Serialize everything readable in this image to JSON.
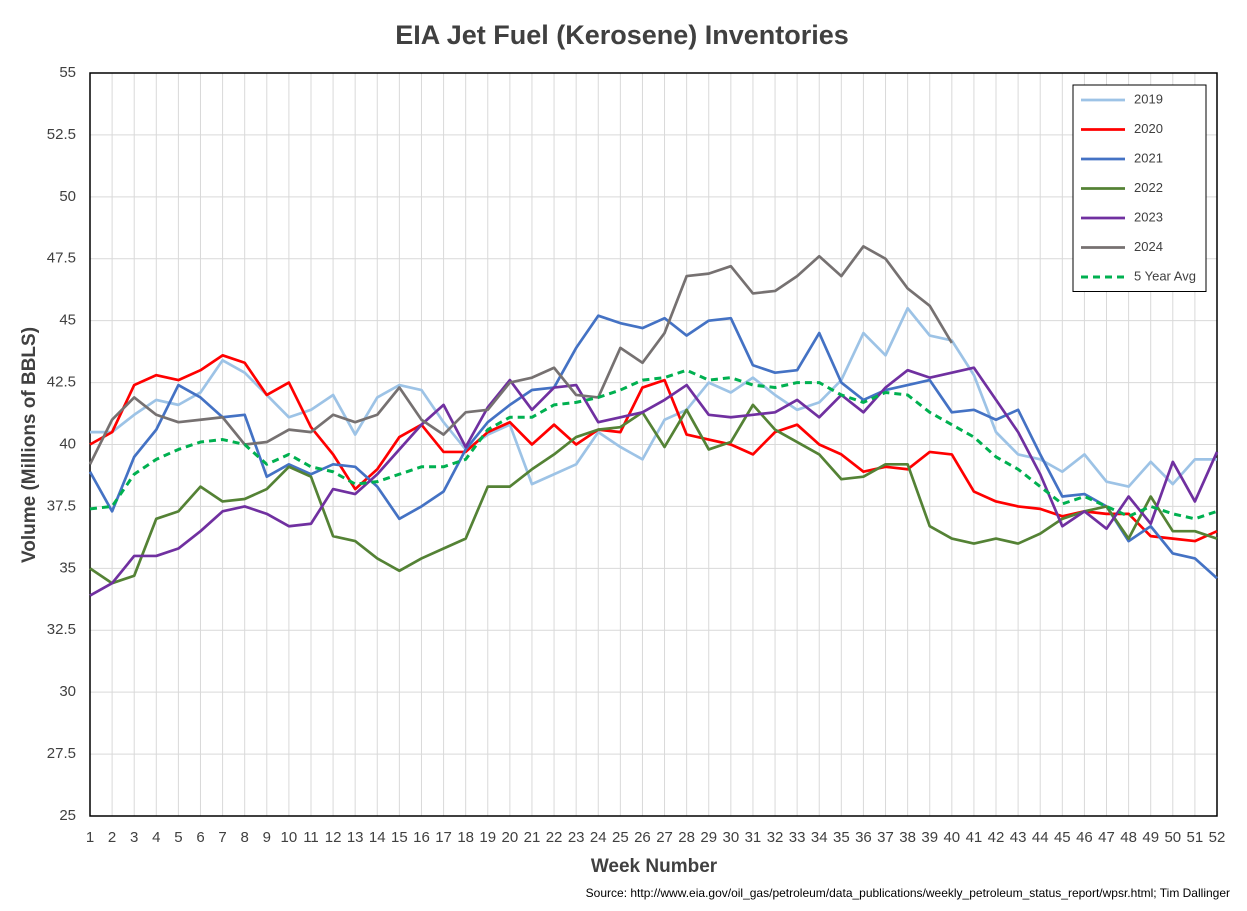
{
  "chart_data": {
    "type": "line",
    "title": "EIA Jet Fuel (Kerosene) Inventories",
    "x_label": "Week Number",
    "y_label": "Volume (Millions of BBLS)",
    "source": "Source: http://www.eia.gov/oil_gas/petroleum/data_publications/weekly_petroleum_status_report/wpsr.html; Tim Dallinger",
    "x": [
      1,
      2,
      3,
      4,
      5,
      6,
      7,
      8,
      9,
      10,
      11,
      12,
      13,
      14,
      15,
      16,
      17,
      18,
      19,
      20,
      21,
      22,
      23,
      24,
      25,
      26,
      27,
      28,
      29,
      30,
      31,
      32,
      33,
      34,
      35,
      36,
      37,
      38,
      39,
      40,
      41,
      42,
      43,
      44,
      45,
      46,
      47,
      48,
      49,
      50,
      51,
      52
    ],
    "xlim": [
      1,
      52
    ],
    "xticks": [
      1,
      2,
      3,
      4,
      5,
      6,
      7,
      8,
      9,
      10,
      11,
      12,
      13,
      14,
      15,
      16,
      17,
      18,
      19,
      20,
      21,
      22,
      23,
      24,
      25,
      26,
      27,
      28,
      29,
      30,
      31,
      32,
      33,
      34,
      35,
      36,
      37,
      38,
      39,
      40,
      41,
      42,
      43,
      44,
      45,
      46,
      47,
      48,
      49,
      50,
      51,
      52
    ],
    "ylim": [
      25,
      55
    ],
    "yticks": [
      25,
      27.5,
      30,
      32.5,
      35,
      37.5,
      40,
      42.5,
      45,
      47.5,
      50,
      52.5,
      55
    ],
    "grid": true,
    "legend": "top-right",
    "series": [
      {
        "name": "2019",
        "color": "#9dc3e6",
        "dash": false,
        "values": [
          40.5,
          40.5,
          41.2,
          41.8,
          41.6,
          42.1,
          43.4,
          42.9,
          42.0,
          41.1,
          41.4,
          42.0,
          40.4,
          41.9,
          42.4,
          42.2,
          40.9,
          39.8,
          40.4,
          40.8,
          38.4,
          38.8,
          39.2,
          40.5,
          39.9,
          39.4,
          41.0,
          41.4,
          42.5,
          42.1,
          42.7,
          42.0,
          41.4,
          41.7,
          42.6,
          44.5,
          43.6,
          45.5,
          44.4,
          44.2,
          42.8,
          40.5,
          39.6,
          39.4,
          38.9,
          39.6,
          38.5,
          38.3,
          39.3,
          38.4,
          39.4,
          39.4
        ]
      },
      {
        "name": "2020",
        "color": "#ff0000",
        "dash": false,
        "values": [
          40.0,
          40.5,
          42.4,
          42.8,
          42.6,
          43.0,
          43.6,
          43.3,
          42.0,
          42.5,
          40.7,
          39.6,
          38.2,
          39.0,
          40.3,
          40.8,
          39.7,
          39.7,
          40.5,
          40.9,
          40.0,
          40.8,
          40.0,
          40.6,
          40.5,
          42.3,
          42.6,
          40.4,
          40.2,
          40.0,
          39.6,
          40.5,
          40.8,
          40.0,
          39.6,
          38.9,
          39.1,
          39.0,
          39.7,
          39.6,
          38.1,
          37.7,
          37.5,
          37.4,
          37.1,
          37.3,
          37.2,
          37.2,
          36.3,
          36.2,
          36.1,
          36.5
        ]
      },
      {
        "name": "2021",
        "color": "#4472c4",
        "dash": false,
        "values": [
          38.9,
          37.3,
          39.5,
          40.6,
          42.4,
          41.9,
          41.1,
          41.2,
          38.7,
          39.2,
          38.8,
          39.2,
          39.1,
          38.3,
          37.0,
          37.5,
          38.1,
          39.8,
          40.9,
          41.6,
          42.2,
          42.3,
          43.9,
          45.2,
          44.9,
          44.7,
          45.1,
          44.4,
          45.0,
          45.1,
          43.2,
          42.9,
          43.0,
          44.5,
          42.5,
          41.8,
          42.2,
          42.4,
          42.6,
          41.3,
          41.4,
          41.0,
          41.4,
          39.6,
          37.9,
          38.0,
          37.5,
          36.1,
          36.7,
          35.6,
          35.4,
          34.6
        ]
      },
      {
        "name": "2022",
        "color": "#548235",
        "dash": false,
        "values": [
          35.0,
          34.4,
          34.7,
          37.0,
          37.3,
          38.3,
          37.7,
          37.8,
          38.2,
          39.1,
          38.7,
          36.3,
          36.1,
          35.4,
          34.9,
          35.4,
          35.8,
          36.2,
          38.3,
          38.3,
          39.0,
          39.6,
          40.3,
          40.6,
          40.7,
          41.3,
          39.9,
          41.4,
          39.8,
          40.1,
          41.6,
          40.6,
          40.1,
          39.6,
          38.6,
          38.7,
          39.2,
          39.2,
          36.7,
          36.2,
          36.0,
          36.2,
          36.0,
          36.4,
          37.0,
          37.3,
          37.5,
          36.2,
          37.9,
          36.5,
          36.5,
          36.2
        ]
      },
      {
        "name": "2023",
        "color": "#7030a0",
        "dash": false,
        "values": [
          33.9,
          34.4,
          35.5,
          35.5,
          35.8,
          36.5,
          37.3,
          37.5,
          37.2,
          36.7,
          36.8,
          38.2,
          38.0,
          38.8,
          39.8,
          40.8,
          41.6,
          39.9,
          41.5,
          42.6,
          41.4,
          42.3,
          42.4,
          40.9,
          41.1,
          41.3,
          41.8,
          42.4,
          41.2,
          41.1,
          41.2,
          41.3,
          41.8,
          41.1,
          42.0,
          41.3,
          42.3,
          43.0,
          42.7,
          42.9,
          43.1,
          41.8,
          40.5,
          38.8,
          36.7,
          37.3,
          36.6,
          37.9,
          36.8,
          39.3,
          37.7,
          39.7
        ]
      },
      {
        "name": "2024",
        "color": "#767171",
        "dash": false,
        "values": [
          39.2,
          41.0,
          41.9,
          41.2,
          40.9,
          41.0,
          41.1,
          40.0,
          40.1,
          40.6,
          40.5,
          41.2,
          40.9,
          41.2,
          42.3,
          41.0,
          40.4,
          41.3,
          41.4,
          42.5,
          42.7,
          43.1,
          42.0,
          41.9,
          43.9,
          43.3,
          44.5,
          46.8,
          46.9,
          47.2,
          46.1,
          46.2,
          46.8,
          47.6,
          46.8,
          48.0,
          47.5,
          46.3,
          45.6,
          44.1,
          null,
          null,
          null,
          null,
          null,
          null,
          null,
          null,
          null,
          null,
          null,
          null
        ]
      },
      {
        "name": "5 Year Avg",
        "color": "#00b050",
        "dash": true,
        "values": [
          37.4,
          37.5,
          38.8,
          39.4,
          39.8,
          40.1,
          40.2,
          40.0,
          39.2,
          39.6,
          39.1,
          38.9,
          38.4,
          38.5,
          38.8,
          39.1,
          39.1,
          39.4,
          40.6,
          41.1,
          41.1,
          41.6,
          41.7,
          41.9,
          42.2,
          42.6,
          42.7,
          43.0,
          42.6,
          42.7,
          42.4,
          42.3,
          42.5,
          42.5,
          42.0,
          41.7,
          42.1,
          42.0,
          41.3,
          40.8,
          40.3,
          39.5,
          39.0,
          38.3,
          37.6,
          37.9,
          37.5,
          37.1,
          37.5,
          37.2,
          37.0,
          37.3
        ]
      }
    ]
  }
}
